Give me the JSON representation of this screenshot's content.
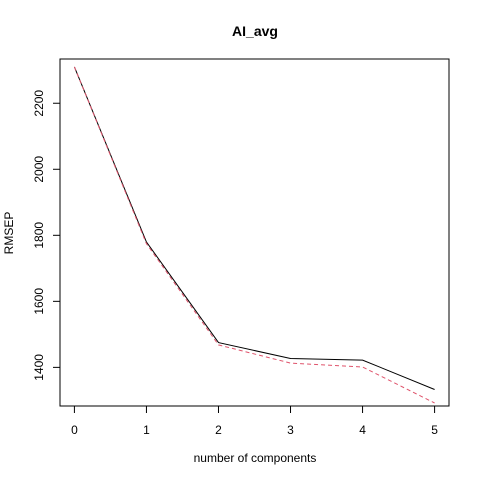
{
  "chart_data": {
    "type": "line",
    "title": "AI_avg",
    "xlabel": "number of components",
    "ylabel": "RMSEP",
    "x": [
      0,
      1,
      2,
      3,
      4,
      5
    ],
    "xticks": [
      0,
      1,
      2,
      3,
      4,
      5
    ],
    "yticks": [
      1400,
      1600,
      1800,
      2000,
      2200
    ],
    "xlim": [
      -0.2,
      5.2
    ],
    "ylim": [
      1283,
      2334
    ],
    "grid": false,
    "legend": "none",
    "series": [
      {
        "values": [
          2310,
          1780,
          1475,
          1427,
          1422,
          1333
        ],
        "color": "#000000",
        "style": "solid"
      },
      {
        "values": [
          2310,
          1775,
          1468,
          1413,
          1401,
          1292
        ],
        "color": "#DF536B",
        "style": "dashed"
      }
    ]
  }
}
